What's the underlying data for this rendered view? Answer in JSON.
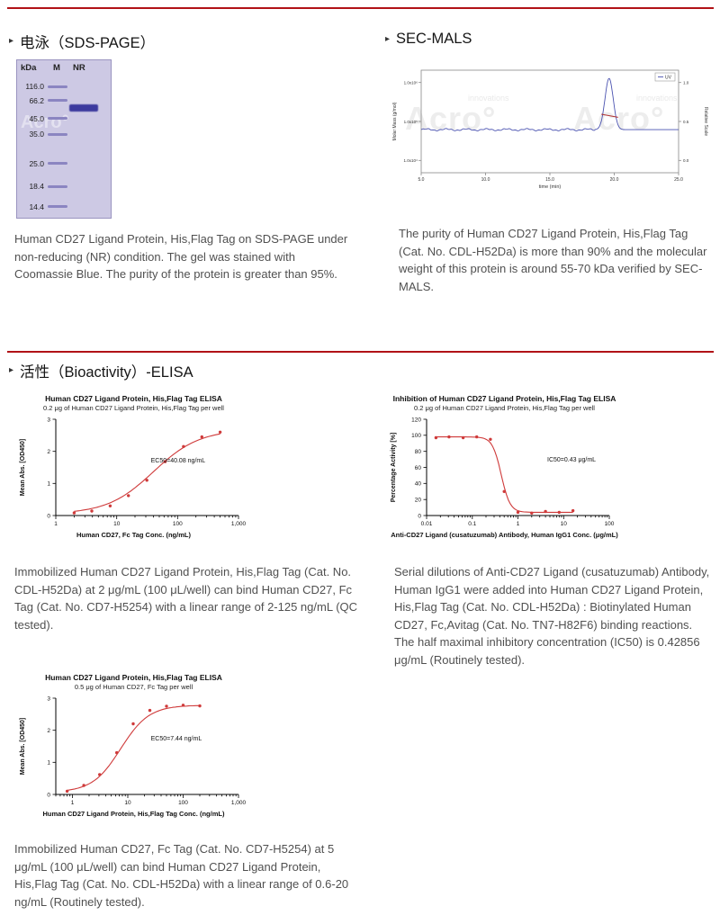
{
  "brand": {
    "watermark": "Acro°",
    "watermark_sub": "innovations"
  },
  "theme": {
    "accent": "#b11217",
    "curve_color": "#cf3a3a",
    "caption_color": "#505050"
  },
  "sds_page": {
    "title": "电泳（SDS-PAGE）",
    "gel": {
      "header": [
        "kDa",
        "M",
        "NR"
      ],
      "markers": [
        {
          "label": "116.0",
          "y": 0.166
        },
        {
          "label": "66.2",
          "y": 0.257
        },
        {
          "label": "45.0",
          "y": 0.371
        },
        {
          "label": "35.0",
          "y": 0.469
        },
        {
          "label": "25.0",
          "y": 0.657
        },
        {
          "label": "18.4",
          "y": 0.8
        },
        {
          "label": "14.4",
          "y": 0.931
        }
      ],
      "sample_band": {
        "y": 0.303
      }
    },
    "caption": "Human CD27 Ligand Protein, His,Flag Tag on SDS-PAGE under non-reducing (NR) condition. The gel was stained with Coomassie Blue. The purity of the protein is greater than 95%."
  },
  "sec_mals": {
    "title": "SEC-MALS",
    "caption": "The purity of Human CD27 Ligand Protein, His,Flag Tag (Cat. No. CDL-H52Da) is more than 90% and the molecular weight of this protein is around 55-70 kDa verified by SEC-MALS."
  },
  "bioactivity": {
    "title": "活性（Bioactivity）-ELISA",
    "captions": [
      "Immobilized Human CD27 Ligand Protein, His,Flag Tag (Cat. No. CDL-H52Da) at 2 μg/mL (100 μL/well) can bind Human CD27, Fc Tag (Cat. No. CD7-H5254) with a linear range of 2-125 ng/mL (QC tested).",
      "Serial dilutions of Anti-CD27 Ligand (cusatuzumab) Antibody, Human IgG1 were added into Human CD27 Ligand Protein, His,Flag Tag (Cat. No. CDL-H52Da) : Biotinylated Human CD27, Fc,Avitag (Cat. No. TN7-H82F6) binding reactions. The half maximal inhibitory concentration (IC50) is 0.42856 μg/mL (Routinely tested).",
      "Immobilized Human CD27, Fc Tag (Cat. No. CD7-H5254) at 5 μg/mL (100 μL/well) can bind Human CD27 Ligand Protein, His,Flag Tag (Cat. No. CDL-H52Da) with a linear range of 0.6-20 ng/mL (Routinely tested)."
    ]
  },
  "chart_data": [
    {
      "id": "secmals",
      "type": "line",
      "legend": "UV",
      "xlabel": "time (min)",
      "ylabel_left": "Molar Mass (g/mol)",
      "ylabel_right": "Relative Scale",
      "x_ticks": [
        "5.0",
        "10.0",
        "15.0",
        "20.0",
        "25.0"
      ],
      "y_ticks_left": [
        "1.0x10⁶",
        "1.0x10⁵",
        "1.0x10⁴"
      ],
      "y_ticks_right": [
        "1.0",
        "0.5",
        "0.0"
      ],
      "xlim": [
        5,
        25
      ],
      "baseline": 0.42,
      "peak": {
        "center": 19.6,
        "sigma": 0.32,
        "height": 0.5
      },
      "mass_segment": {
        "x1": 19.0,
        "x2": 20.3,
        "y1": 0.57,
        "y2": 0.54
      }
    },
    {
      "id": "elisa1",
      "type": "scatter",
      "title": "Human CD27 Ligand Protein, His,Flag Tag ELISA",
      "subtitle": "0.2 μg of Human CD27 Ligand Protein, His,Flag Tag per well",
      "xlabel": "Human CD27, Fc Tag Conc. (ng/mL)",
      "ylabel": "Mean Abs. [OD450]",
      "annotation": "EC50=40.08 ng/mL",
      "xlim": [
        1,
        1000
      ],
      "ylim": [
        0,
        3
      ],
      "x_ticks": [
        [
          1,
          "1"
        ],
        [
          10,
          "10"
        ],
        [
          100,
          "100"
        ],
        [
          1000,
          "1,000"
        ]
      ],
      "y_ticks": [
        0,
        1,
        2,
        3
      ],
      "points": [
        [
          2,
          0.08
        ],
        [
          3.9,
          0.14
        ],
        [
          7.8,
          0.3
        ],
        [
          15.6,
          0.62
        ],
        [
          31.3,
          1.1
        ],
        [
          62.5,
          1.68
        ],
        [
          125,
          2.15
        ],
        [
          250,
          2.45
        ],
        [
          500,
          2.6
        ]
      ],
      "fit": {
        "bottom": 0.05,
        "top": 2.68,
        "mid": 40.08,
        "hill": 1.15,
        "direction": "up"
      },
      "ann_pos": [
        0.52,
        0.45
      ]
    },
    {
      "id": "elisa2",
      "type": "scatter",
      "title": "Inhibition of Human CD27 Ligand Protein, His,Flag Tag ELISA",
      "subtitle": "0.2 μg of Human CD27 Ligand Protein, His,Flag Tag per well",
      "xlabel": "Anti-CD27 Ligand (cusatuzumab) Antibody, Human IgG1 Conc. (μg/mL)",
      "ylabel": "Percentage Activity [%]",
      "annotation": "IC50=0.43 μg/mL",
      "xlim": [
        0.01,
        100
      ],
      "ylim": [
        0,
        120
      ],
      "x_ticks": [
        [
          0.01,
          "0.01"
        ],
        [
          0.1,
          "0.1"
        ],
        [
          1,
          "1"
        ],
        [
          10,
          "10"
        ],
        [
          100,
          "100"
        ]
      ],
      "y_ticks": [
        0,
        20,
        40,
        60,
        80,
        100,
        120
      ],
      "points": [
        [
          0.016,
          97
        ],
        [
          0.031,
          98
        ],
        [
          0.063,
          97
        ],
        [
          0.125,
          98
        ],
        [
          0.25,
          95
        ],
        [
          0.5,
          30
        ],
        [
          1,
          4
        ],
        [
          2,
          3
        ],
        [
          4,
          5
        ],
        [
          8,
          4
        ],
        [
          16,
          6
        ]
      ],
      "fit": {
        "bottom": 4,
        "top": 98,
        "mid": 0.43,
        "hill": 4.5,
        "direction": "down"
      },
      "ann_pos": [
        0.66,
        0.44
      ]
    },
    {
      "id": "elisa3",
      "type": "scatter",
      "title": "Human CD27 Ligand Protein, His,Flag Tag ELISA",
      "subtitle": "0.5 μg of Human CD27, Fc Tag per well",
      "xlabel": "Human CD27 Ligand Protein, His,Flag Tag Conc. (ng/mL)",
      "ylabel": "Mean Abs. [OD450]",
      "annotation": "EC50=7.44 ng/mL",
      "xlim": [
        0.5,
        1000
      ],
      "ylim": [
        0,
        3
      ],
      "x_ticks": [
        [
          1,
          "1"
        ],
        [
          10,
          "10"
        ],
        [
          100,
          "100"
        ],
        [
          1000,
          "1,000"
        ]
      ],
      "y_ticks": [
        0,
        1,
        2,
        3
      ],
      "points": [
        [
          0.8,
          0.1
        ],
        [
          1.6,
          0.28
        ],
        [
          3.1,
          0.62
        ],
        [
          6.3,
          1.3
        ],
        [
          12.5,
          2.2
        ],
        [
          25,
          2.62
        ],
        [
          50,
          2.75
        ],
        [
          100,
          2.78
        ],
        [
          200,
          2.76
        ]
      ],
      "fit": {
        "bottom": 0.07,
        "top": 2.78,
        "mid": 7.44,
        "hill": 1.7,
        "direction": "up"
      },
      "ann_pos": [
        0.52,
        0.44
      ]
    }
  ]
}
